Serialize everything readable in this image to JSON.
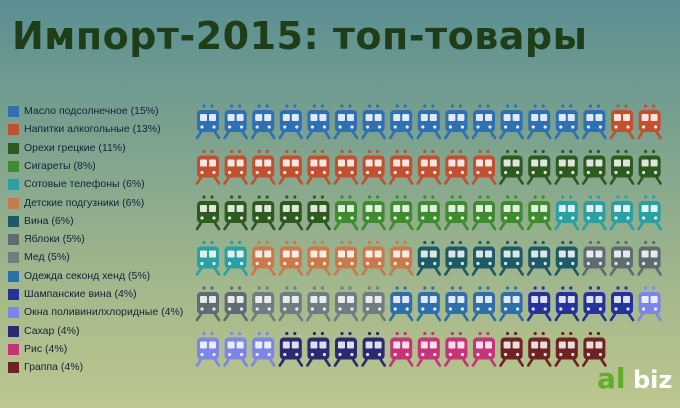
{
  "title": "Импорт-2015: топ-товары",
  "logo": {
    "accent": "al",
    "rest": "biz"
  },
  "chart_data": {
    "type": "pictogram",
    "icon": "train-icon",
    "title": "Импорт-2015: топ-товары",
    "unit": "%",
    "series": [
      {
        "name": "Масло подсолнечное (15%)",
        "value": 15,
        "color": "#2f6fb2"
      },
      {
        "name": "Напитки алкогольные (13%)",
        "value": 13,
        "color": "#c0502f"
      },
      {
        "name": "Орехи грецкие (11%)",
        "value": 11,
        "color": "#2d5a1f"
      },
      {
        "name": "Сигареты (8%)",
        "value": 8,
        "color": "#3e8c2e"
      },
      {
        "name": "Сотовые телефоны (6%)",
        "value": 6,
        "color": "#2aa0a3"
      },
      {
        "name": "Детские подгузники (6%)",
        "value": 6,
        "color": "#c87a4c"
      },
      {
        "name": "Вина (6%)",
        "value": 6,
        "color": "#1e5a66"
      },
      {
        "name": "Яблоки (5%)",
        "value": 5,
        "color": "#5e6b70"
      },
      {
        "name": "Мед (5%)",
        "value": 5,
        "color": "#6f7d80"
      },
      {
        "name": "Одежда секонд хенд (5%)",
        "value": 5,
        "color": "#2f6fa8"
      },
      {
        "name": "Шампанские вина (4%)",
        "value": 4,
        "color": "#23339a"
      },
      {
        "name": "Окна поливинилхлоридные (4%)",
        "value": 4,
        "color": "#7b86e6"
      },
      {
        "name": "Сахар (4%)",
        "value": 4,
        "color": "#2a2a72"
      },
      {
        "name": "Рис (4%)",
        "value": 4,
        "color": "#c53478"
      },
      {
        "name": "Граппа (4%)",
        "value": 4,
        "color": "#6e2222"
      }
    ]
  }
}
